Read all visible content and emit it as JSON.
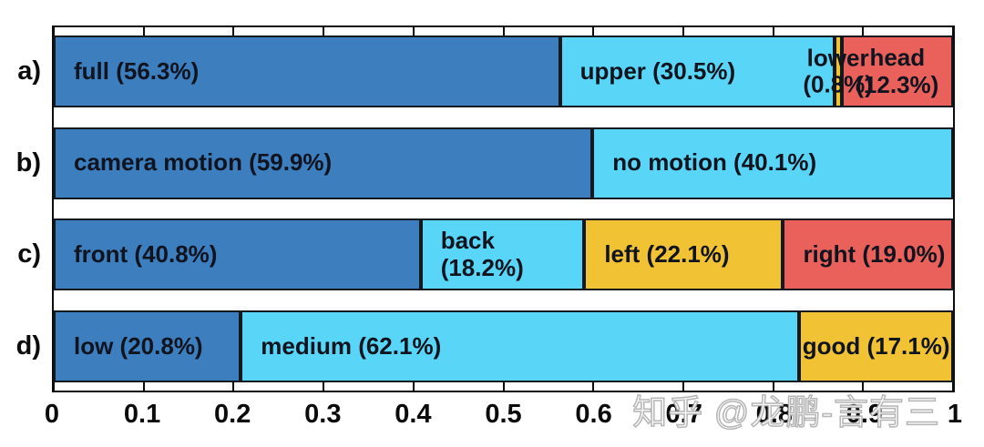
{
  "watermark": {
    "text": "知乎 @龙鹏-言有三"
  },
  "colors": {
    "blue": "#3d7ebf",
    "cyan": "#59d6f7",
    "yellow": "#f1c233",
    "red": "#e9615a",
    "border": "#14181f",
    "label_text": "#10141f"
  },
  "chart_data": {
    "type": "bar",
    "orientation": "horizontal",
    "stacked": true,
    "title": "",
    "xlabel": "",
    "ylabel": "",
    "xlim": [
      0,
      1
    ],
    "grid": false,
    "legend": "none",
    "x_ticks": [
      {
        "value": 0.0,
        "label": "0"
      },
      {
        "value": 0.1,
        "label": "0.1"
      },
      {
        "value": 0.2,
        "label": "0.2"
      },
      {
        "value": 0.3,
        "label": "0.3"
      },
      {
        "value": 0.4,
        "label": "0.4"
      },
      {
        "value": 0.5,
        "label": "0.5"
      },
      {
        "value": 0.6,
        "label": "0.6"
      },
      {
        "value": 0.7,
        "label": "0.7"
      },
      {
        "value": 0.8,
        "label": "0.8"
      },
      {
        "value": 0.9,
        "label": "0.9"
      },
      {
        "value": 1.0,
        "label": "1"
      }
    ],
    "rows": [
      {
        "key": "a",
        "label": "a)",
        "segments": [
          {
            "name": "full",
            "pct": 56.3,
            "label": "full (56.3%)",
            "color": "blue",
            "align": "left"
          },
          {
            "name": "upper",
            "pct": 30.5,
            "label": "upper (30.5%)",
            "color": "cyan",
            "align": "left"
          },
          {
            "name": "lower",
            "pct": 0.8,
            "label": "lower\n(0.8%)",
            "color": "yellow",
            "align": "center",
            "overflow": true
          },
          {
            "name": "head",
            "pct": 12.3,
            "label": "head\n(12.3%)",
            "color": "red",
            "align": "center"
          }
        ]
      },
      {
        "key": "b",
        "label": "b)",
        "segments": [
          {
            "name": "camera-motion",
            "pct": 59.9,
            "label": "camera motion (59.9%)",
            "color": "blue",
            "align": "left"
          },
          {
            "name": "no-motion",
            "pct": 40.1,
            "label": "no motion (40.1%)",
            "color": "cyan",
            "align": "left"
          }
        ]
      },
      {
        "key": "c",
        "label": "c)",
        "segments": [
          {
            "name": "front",
            "pct": 40.8,
            "label": "front (40.8%)",
            "color": "blue",
            "align": "left"
          },
          {
            "name": "back",
            "pct": 18.2,
            "label": "back (18.2%)",
            "color": "cyan",
            "align": "left"
          },
          {
            "name": "left",
            "pct": 22.1,
            "label": "left (22.1%)",
            "color": "yellow",
            "align": "left"
          },
          {
            "name": "right",
            "pct": 19.0,
            "label": "right (19.0%)",
            "color": "red",
            "align": "left"
          }
        ]
      },
      {
        "key": "d",
        "label": "d)",
        "segments": [
          {
            "name": "low",
            "pct": 20.8,
            "label": "low (20.8%)",
            "color": "blue",
            "align": "left"
          },
          {
            "name": "medium",
            "pct": 62.1,
            "label": "medium (62.1%)",
            "color": "cyan",
            "align": "left"
          },
          {
            "name": "good",
            "pct": 17.1,
            "label": "good (17.1%)",
            "color": "yellow",
            "align": "center"
          }
        ]
      }
    ]
  }
}
